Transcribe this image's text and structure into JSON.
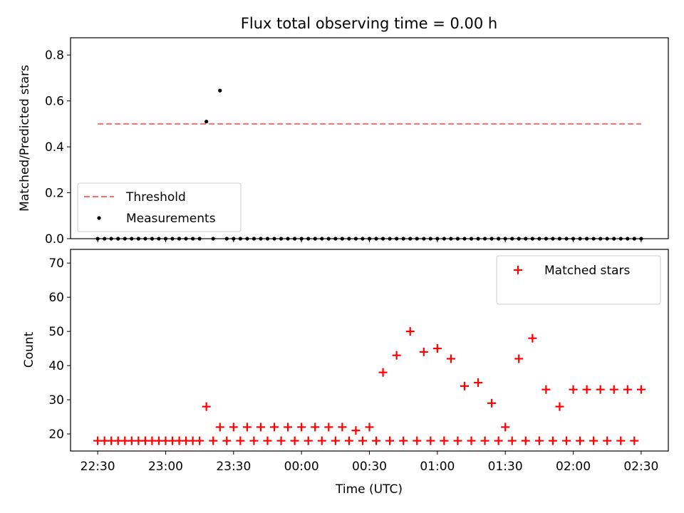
{
  "colors": {
    "threshold": "#ff6b6b",
    "measurement": "#000000",
    "matched": "#ff0000",
    "predicted": "#000000",
    "axes": "#000000"
  },
  "chart_data": [
    {
      "type": "scatter",
      "title": "Flux total observing time = 0.00 h",
      "xlabel": "",
      "ylabel": "Matched/Predicted stars",
      "xlim": [
        "22:18",
        "02:42"
      ],
      "ylim": [
        0,
        0.875
      ],
      "yticks": [
        "0.0",
        "0.2",
        "0.4",
        "0.6",
        "0.8"
      ],
      "grid": false,
      "legend_position": "lower-left",
      "series": [
        {
          "name": "Threshold",
          "kind": "dashed-line",
          "x": [
            "22:30",
            "02:30"
          ],
          "y": [
            0.5,
            0.5
          ]
        },
        {
          "name": "Measurements",
          "kind": "scatter",
          "x": [
            "22:30",
            "22:33",
            "22:36",
            "22:39",
            "22:42",
            "22:45",
            "22:48",
            "22:51",
            "22:54",
            "22:57",
            "23:00",
            "23:03",
            "23:06",
            "23:09",
            "23:12",
            "23:15",
            "23:18",
            "23:21",
            "23:24",
            "23:27",
            "23:30",
            "23:33",
            "23:36",
            "23:39",
            "23:42",
            "23:45",
            "23:48",
            "23:51",
            "23:54",
            "23:57",
            "00:00",
            "00:03",
            "00:06",
            "00:09",
            "00:12",
            "00:15",
            "00:18",
            "00:21",
            "00:24",
            "00:27",
            "00:30",
            "00:33",
            "00:36",
            "00:39",
            "00:42",
            "00:45",
            "00:48",
            "00:51",
            "00:54",
            "00:57",
            "01:00",
            "01:03",
            "01:06",
            "01:09",
            "01:12",
            "01:15",
            "01:18",
            "01:21",
            "01:24",
            "01:27",
            "01:30",
            "01:33",
            "01:36",
            "01:39",
            "01:42",
            "01:45",
            "01:48",
            "01:51",
            "01:54",
            "01:57",
            "02:00",
            "02:03",
            "02:06",
            "02:09",
            "02:12",
            "02:15",
            "02:18",
            "02:21",
            "02:24",
            "02:27",
            "02:30"
          ],
          "y": [
            0.0,
            0.0,
            0.0,
            0.0,
            0.0,
            0.0,
            0.0,
            0.0,
            0.0,
            0.0,
            0.0,
            0.0,
            0.0,
            0.0,
            0.0,
            0.0,
            0.51,
            0.0,
            0.645,
            0.0,
            0.0,
            0.0,
            0.0,
            0.0,
            0.0,
            0.0,
            0.0,
            0.0,
            0.0,
            0.0,
            0.0,
            0.0,
            0.0,
            0.0,
            0.0,
            0.0,
            0.0,
            0.0,
            0.0,
            0.0,
            0.0,
            0.0,
            0.0,
            0.0,
            0.0,
            0.0,
            0.0,
            0.0,
            0.0,
            0.0,
            0.0,
            0.0,
            0.0,
            0.0,
            0.0,
            0.0,
            0.0,
            0.0,
            0.0,
            0.0,
            0.0,
            0.0,
            0.0,
            0.0,
            0.0,
            0.0,
            0.0,
            0.0,
            0.0,
            0.0,
            0.0,
            0.0,
            0.0,
            0.0,
            0.0,
            0.0,
            0.0,
            0.0,
            0.0,
            0.0,
            0.0
          ]
        }
      ]
    },
    {
      "type": "scatter",
      "title": "",
      "xlabel": "Time (UTC)",
      "ylabel": "Count",
      "xlim": [
        "22:18",
        "02:42"
      ],
      "ylim": [
        15,
        74
      ],
      "xticks": [
        "22:30",
        "23:00",
        "23:30",
        "00:00",
        "00:30",
        "01:00",
        "01:30",
        "02:00",
        "02:30"
      ],
      "yticks": [
        "20",
        "30",
        "40",
        "50",
        "60",
        "70"
      ],
      "grid": false,
      "legend_position": "top-right",
      "series": [
        {
          "name": "Matched stars",
          "kind": "plus",
          "x": [
            "22:30",
            "22:33",
            "22:36",
            "22:39",
            "22:42",
            "22:45",
            "22:48",
            "22:51",
            "22:54",
            "22:57",
            "23:00",
            "23:03",
            "23:06",
            "23:09",
            "23:12",
            "23:15",
            "23:18",
            "23:21",
            "23:24",
            "23:27",
            "23:30",
            "23:33",
            "23:36",
            "23:39",
            "23:42",
            "23:45",
            "23:48",
            "23:51",
            "23:54",
            "23:57",
            "00:00",
            "00:03",
            "00:06",
            "00:09",
            "00:12",
            "00:15",
            "00:18",
            "00:21",
            "00:24",
            "00:27",
            "00:30",
            "00:33",
            "00:36",
            "00:39",
            "00:42",
            "00:45",
            "00:48",
            "00:51",
            "00:54",
            "00:57",
            "01:00",
            "01:03",
            "01:06",
            "01:09",
            "01:12",
            "01:15",
            "01:18",
            "01:21",
            "01:24",
            "01:27",
            "01:30",
            "01:33",
            "01:36",
            "01:39",
            "01:42",
            "01:45",
            "01:48",
            "01:51",
            "01:54",
            "01:57",
            "02:00",
            "02:03",
            "02:06",
            "02:09",
            "02:12",
            "02:15",
            "02:18",
            "02:21",
            "02:24",
            "02:27",
            "02:30"
          ],
          "y": [
            18,
            18,
            18,
            18,
            18,
            18,
            18,
            18,
            18,
            18,
            18,
            18,
            18,
            18,
            18,
            18,
            28,
            18,
            22,
            18,
            22,
            18,
            22,
            18,
            22,
            18,
            22,
            18,
            22,
            18,
            22,
            18,
            22,
            18,
            22,
            18,
            22,
            18,
            21,
            18,
            22,
            18,
            38,
            18,
            43,
            18,
            50,
            18,
            44,
            18,
            45,
            18,
            42,
            18,
            34,
            18,
            35,
            18,
            29,
            18,
            22,
            18,
            42,
            18,
            48,
            18,
            33,
            18,
            28,
            18,
            33,
            18,
            33,
            18,
            33,
            18,
            33,
            18,
            33,
            18,
            33
          ]
        }
      ]
    }
  ]
}
